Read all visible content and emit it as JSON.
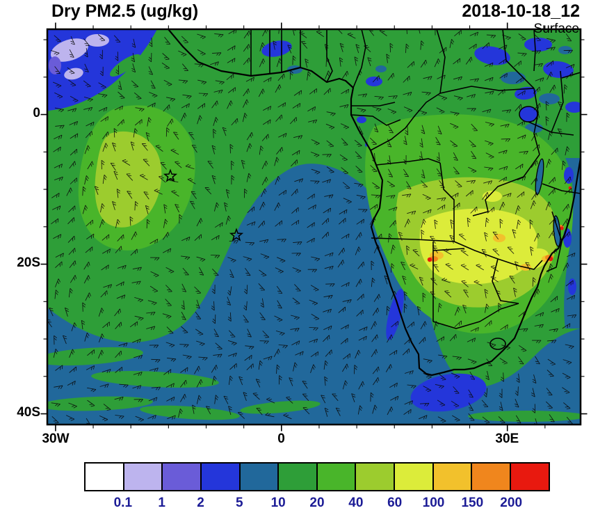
{
  "header": {
    "title": "Dry PM2.5 (ug/kg)",
    "datetime": "2018-10-18_12",
    "level": "Surface"
  },
  "map": {
    "lat_labels": [
      "0",
      "20S",
      "40S"
    ],
    "lon_labels": [
      "30W",
      "0",
      "30E"
    ],
    "markers": [
      [
        177,
        211
      ],
      [
        272,
        296
      ]
    ]
  },
  "legend": {
    "labels": [
      "0.1",
      "1",
      "2",
      "5",
      "10",
      "20",
      "40",
      "60",
      "100",
      "150",
      "200"
    ],
    "colors": [
      "#ffffff",
      "#bdb4ee",
      "#6a5cd8",
      "#2436da",
      "#21689b",
      "#2e9e38",
      "#49b52a",
      "#9ccc2e",
      "#dcec3a",
      "#f2c12c",
      "#f0861d",
      "#e8190f"
    ],
    "label_color": "#1c1c96"
  }
}
